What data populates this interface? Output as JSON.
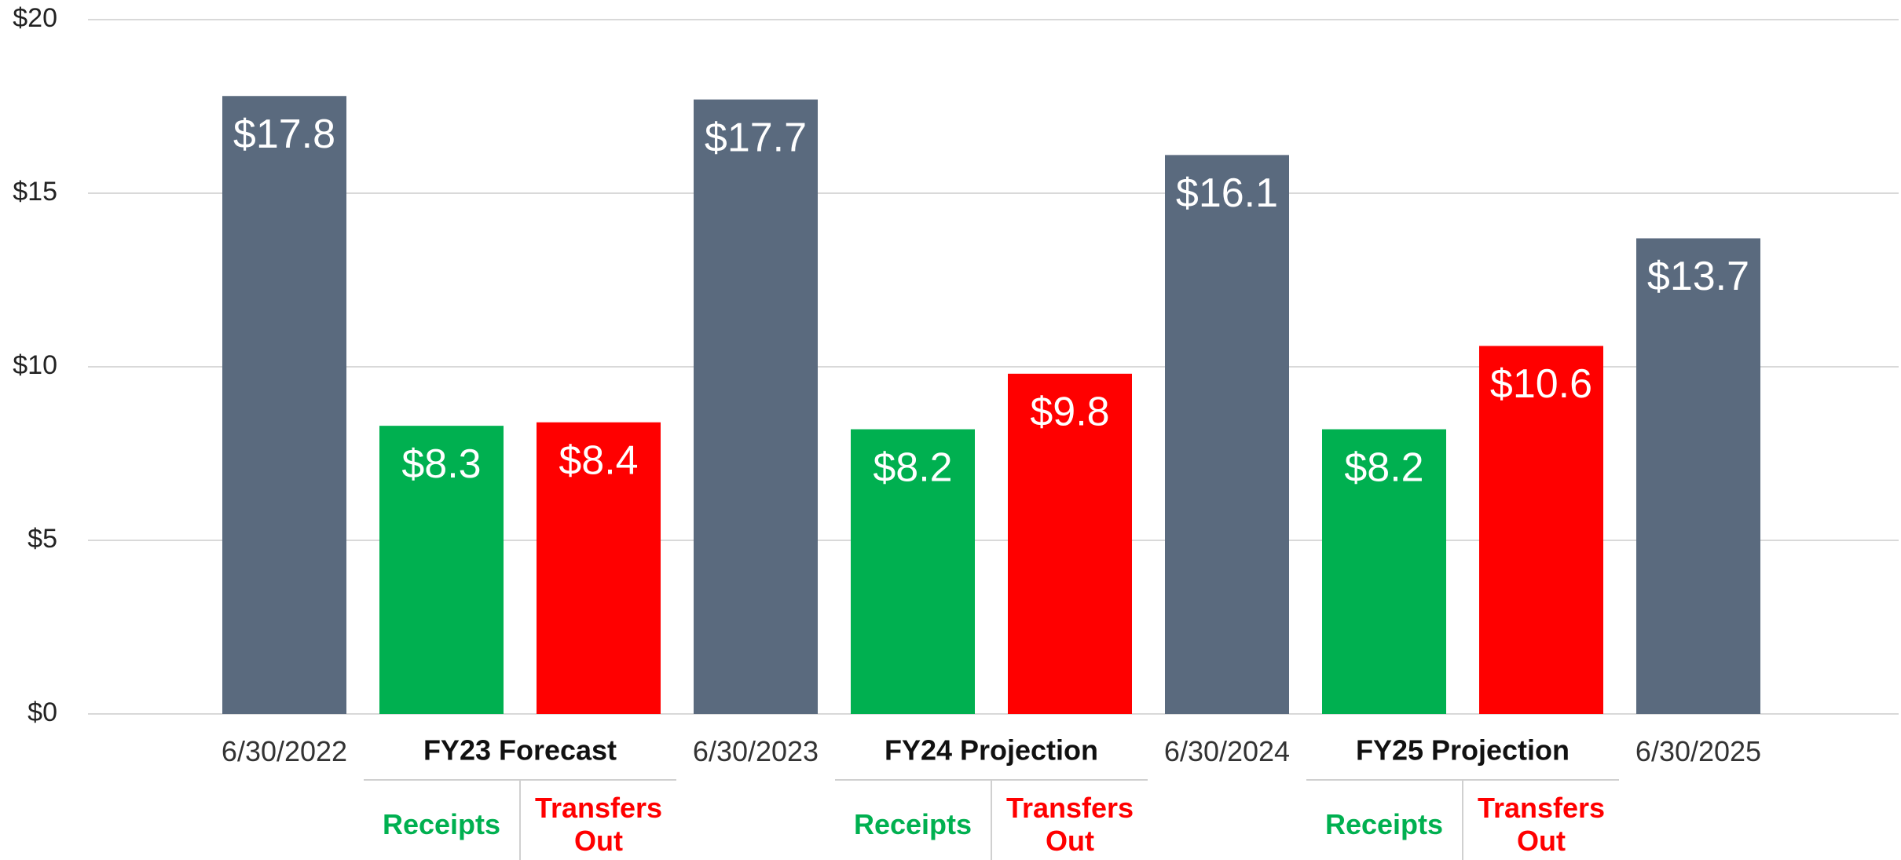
{
  "chart_data": {
    "type": "bar",
    "categories": [
      "6/30/2022",
      "Receipts",
      "Transfers Out",
      "6/30/2023",
      "Receipts",
      "Transfers Out",
      "6/30/2024",
      "Receipts",
      "Transfers Out",
      "6/30/2025"
    ],
    "values": [
      17.8,
      8.3,
      8.4,
      17.7,
      8.2,
      9.8,
      16.1,
      8.2,
      10.6,
      13.7
    ],
    "value_labels": [
      "$17.8",
      "$8.3",
      "$8.4",
      "$17.7",
      "$8.2",
      "$9.8",
      "$16.1",
      "$8.2",
      "$10.6",
      "$13.7"
    ],
    "colors": [
      "#5a6a7e",
      "#00b050",
      "#ff0000",
      "#5a6a7e",
      "#00b050",
      "#ff0000",
      "#5a6a7e",
      "#00b050",
      "#ff0000",
      "#5a6a7e"
    ],
    "groups": [
      "FY23 Forecast",
      "FY24 Projection",
      "FY25 Projection"
    ],
    "ylim": [
      0,
      20
    ],
    "yticks": [
      {
        "value": 0,
        "label": "$0"
      },
      {
        "value": 5,
        "label": "$5"
      },
      {
        "value": 10,
        "label": "$10"
      },
      {
        "value": 15,
        "label": "$15"
      },
      {
        "value": 20,
        "label": "$20"
      }
    ],
    "grid": true
  }
}
